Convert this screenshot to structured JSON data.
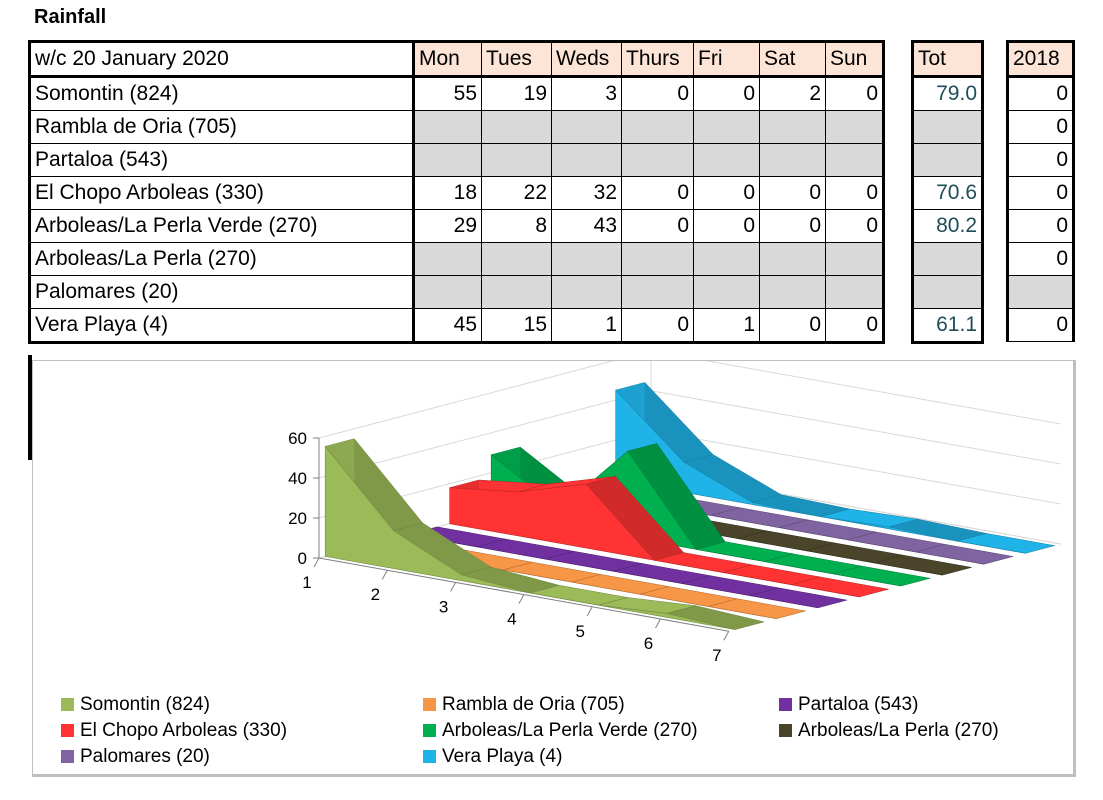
{
  "title": "Rainfall",
  "table": {
    "week_label": "w/c 20 January 2020",
    "days": [
      "Mon",
      "Tues",
      "Weds",
      "Thurs",
      "Fri",
      "Sat",
      "Sun"
    ],
    "tot_header": "Tot",
    "prev_header": "2018",
    "rows": [
      {
        "name": "Somontin (824)",
        "values": [
          "55",
          "19",
          "3",
          "0",
          "0",
          "2",
          "0"
        ],
        "tot": "79.0",
        "prev": "0"
      },
      {
        "name": "Rambla de Oria (705)",
        "values": [
          "",
          "",
          "",
          "",
          "",
          "",
          ""
        ],
        "tot": "",
        "prev": "0"
      },
      {
        "name": "Partaloa (543)",
        "values": [
          "",
          "",
          "",
          "",
          "",
          "",
          ""
        ],
        "tot": "",
        "prev": "0"
      },
      {
        "name": "El Chopo Arboleas (330)",
        "values": [
          "18",
          "22",
          "32",
          "0",
          "0",
          "0",
          "0"
        ],
        "tot": "70.6",
        "prev": "0"
      },
      {
        "name": "Arboleas/La Perla Verde (270)",
        "values": [
          "29",
          "8",
          "43",
          "0",
          "0",
          "0",
          "0"
        ],
        "tot": "80.2",
        "prev": "0"
      },
      {
        "name": "Arboleas/La Perla (270)",
        "values": [
          "",
          "",
          "",
          "",
          "",
          "",
          ""
        ],
        "tot": "",
        "prev": "0"
      },
      {
        "name": "Palomares (20)",
        "values": [
          "",
          "",
          "",
          "",
          "",
          "",
          ""
        ],
        "tot": "",
        "prev": ""
      },
      {
        "name": "Vera Playa (4)",
        "values": [
          "45",
          "15",
          "1",
          "0",
          "1",
          "0",
          "0"
        ],
        "tot": "61.1",
        "prev": "0"
      }
    ]
  },
  "chart_data": {
    "type": "area",
    "title": "",
    "categories": [
      "1",
      "2",
      "3",
      "4",
      "5",
      "6",
      "7"
    ],
    "yticks": [
      "0",
      "20",
      "40",
      "60"
    ],
    "ylim": [
      0,
      60
    ],
    "series": [
      {
        "name": "Somontin (824)",
        "color": "#9bbb59",
        "values": [
          55,
          19,
          3,
          0,
          0,
          2,
          0
        ]
      },
      {
        "name": "Rambla de Oria (705)",
        "color": "#f79646",
        "values": [
          0,
          0,
          0,
          0,
          0,
          0,
          0
        ]
      },
      {
        "name": "Partaloa (543)",
        "color": "#7030a0",
        "values": [
          0,
          0,
          0,
          0,
          0,
          0,
          0
        ]
      },
      {
        "name": "El Chopo Arboleas (330)",
        "color": "#ff3333",
        "values": [
          18,
          22,
          32,
          0,
          0,
          0,
          0
        ]
      },
      {
        "name": "Arboleas/La Perla Verde (270)",
        "color": "#00b050",
        "values": [
          29,
          8,
          43,
          0,
          0,
          0,
          0
        ]
      },
      {
        "name": "Arboleas/La Perla (270)",
        "color": "#4a452a",
        "values": [
          0,
          0,
          0,
          0,
          0,
          0,
          0
        ]
      },
      {
        "name": "Palomares (20)",
        "color": "#8064a2",
        "values": [
          0,
          0,
          0,
          0,
          0,
          0,
          0
        ]
      },
      {
        "name": "Vera Playa (4)",
        "color": "#1fb3e8",
        "values": [
          45,
          15,
          1,
          0,
          1,
          0,
          0
        ]
      }
    ],
    "legend_position": "bottom"
  }
}
